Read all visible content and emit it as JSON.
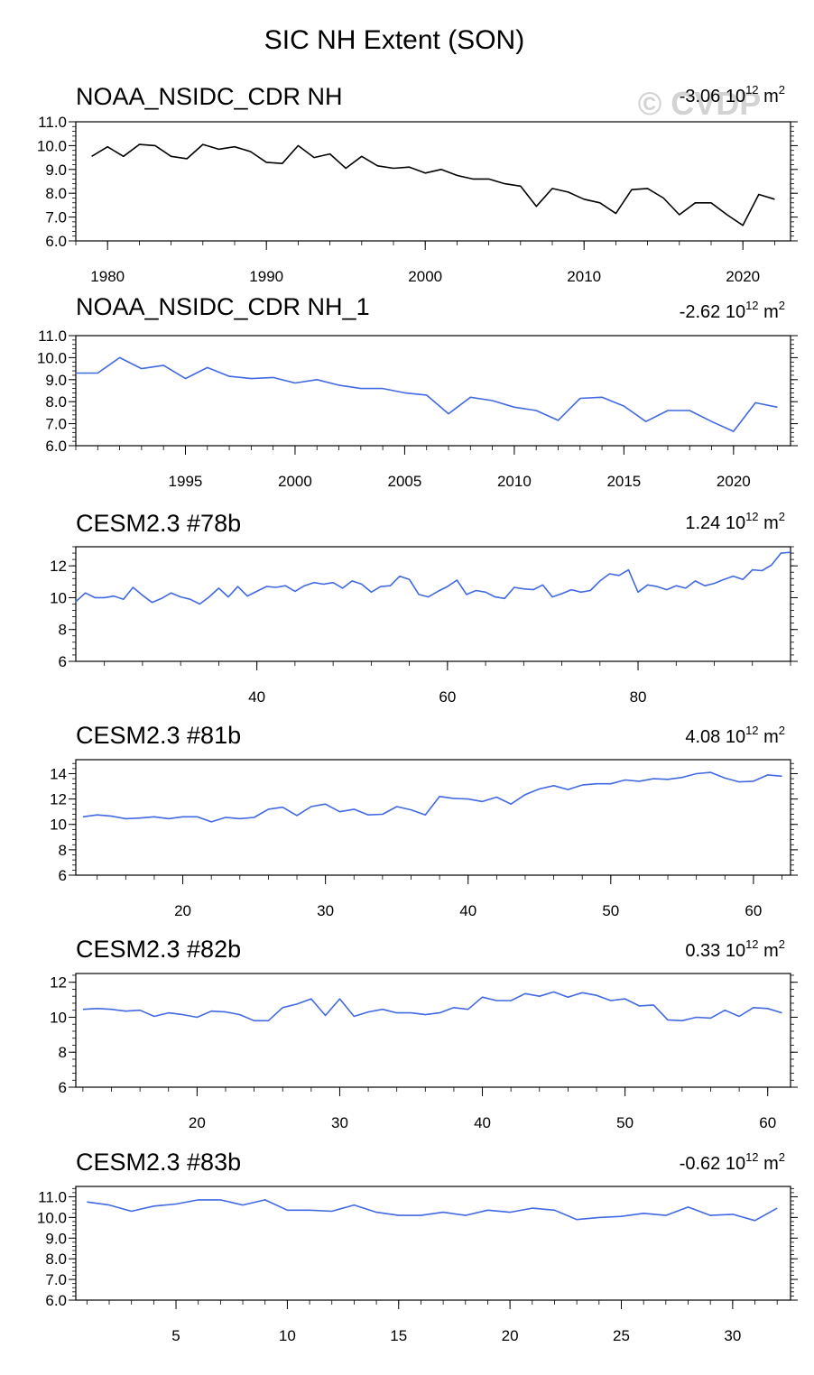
{
  "figure": {
    "title": "SIC NH Extent (SON)",
    "watermark": "© CVDP",
    "unit_base": "10",
    "unit_exp": "12",
    "unit_m": "m",
    "unit_sup": "2"
  },
  "chart_data": [
    {
      "type": "line",
      "title": "NOAA_NSIDC_CDR NH",
      "trend": "-3.06",
      "color": "#000000",
      "xlim": [
        1978,
        2023
      ],
      "ylim": [
        6,
        11
      ],
      "yticks": [
        6,
        7,
        8,
        9,
        10,
        11
      ],
      "yticklabels": [
        "6.0",
        "7.0",
        "8.0",
        "9.0",
        "10.0",
        "11.0"
      ],
      "xticks": [
        1980,
        1990,
        2000,
        2010,
        2020
      ],
      "xticklabels": [
        "1980",
        "1990",
        "2000",
        "2010",
        "2020"
      ],
      "x": [
        1979,
        1980,
        1981,
        1982,
        1983,
        1984,
        1985,
        1986,
        1987,
        1988,
        1989,
        1990,
        1991,
        1992,
        1993,
        1994,
        1995,
        1996,
        1997,
        1998,
        1999,
        2000,
        2001,
        2002,
        2003,
        2004,
        2005,
        2006,
        2007,
        2008,
        2009,
        2010,
        2011,
        2012,
        2013,
        2014,
        2015,
        2016,
        2017,
        2018,
        2019,
        2020,
        2021,
        2022
      ],
      "y": [
        9.55,
        9.95,
        9.55,
        10.05,
        10.0,
        9.55,
        9.45,
        10.05,
        9.85,
        9.95,
        9.75,
        9.3,
        9.25,
        10.0,
        9.5,
        9.65,
        9.05,
        9.55,
        9.15,
        9.05,
        9.1,
        8.85,
        9.0,
        8.75,
        8.6,
        8.6,
        8.4,
        8.3,
        7.45,
        8.2,
        8.05,
        7.75,
        7.6,
        7.15,
        8.15,
        8.2,
        7.8,
        7.1,
        7.6,
        7.6,
        7.1,
        6.65,
        7.95,
        7.75
      ]
    },
    {
      "type": "line",
      "title": "NOAA_NSIDC_CDR NH_1",
      "trend": "-2.62",
      "color": "#4169e1",
      "xlim": [
        1990,
        2022.6
      ],
      "ylim": [
        6,
        11
      ],
      "yticks": [
        6,
        7,
        8,
        9,
        10,
        11
      ],
      "yticklabels": [
        "6.0",
        "7.0",
        "8.0",
        "9.0",
        "10.0",
        "11.0"
      ],
      "xticks": [
        1995,
        2000,
        2005,
        2010,
        2015,
        2020
      ],
      "xticklabels": [
        "1995",
        "2000",
        "2005",
        "2010",
        "2015",
        "2020"
      ],
      "x": [
        1990,
        1991,
        1992,
        1993,
        1994,
        1995,
        1996,
        1997,
        1998,
        1999,
        2000,
        2001,
        2002,
        2003,
        2004,
        2005,
        2006,
        2007,
        2008,
        2009,
        2010,
        2011,
        2012,
        2013,
        2014,
        2015,
        2016,
        2017,
        2018,
        2019,
        2020,
        2021,
        2022
      ],
      "y": [
        9.3,
        9.3,
        10.0,
        9.5,
        9.65,
        9.05,
        9.55,
        9.15,
        9.05,
        9.1,
        8.85,
        9.0,
        8.75,
        8.6,
        8.6,
        8.4,
        8.3,
        7.45,
        8.2,
        8.05,
        7.75,
        7.6,
        7.15,
        8.15,
        8.2,
        7.8,
        7.1,
        7.6,
        7.6,
        7.1,
        6.65,
        7.95,
        7.75
      ]
    },
    {
      "type": "line",
      "title": "CESM2.3 #78b",
      "trend": "1.24",
      "color": "#4169e1",
      "xlim": [
        21,
        96
      ],
      "ylim": [
        6,
        13.2
      ],
      "yticks": [
        6,
        8,
        10,
        12
      ],
      "yticklabels": [
        "6",
        "8",
        "10",
        "12"
      ],
      "xticks": [
        40,
        60,
        80
      ],
      "xticklabels": [
        "40",
        "60",
        "80"
      ],
      "x": [
        21,
        22,
        23,
        24,
        25,
        26,
        27,
        28,
        29,
        30,
        31,
        32,
        33,
        34,
        35,
        36,
        37,
        38,
        39,
        40,
        41,
        42,
        43,
        44,
        45,
        46,
        47,
        48,
        49,
        50,
        51,
        52,
        53,
        54,
        55,
        56,
        57,
        58,
        59,
        60,
        61,
        62,
        63,
        64,
        65,
        66,
        67,
        68,
        69,
        70,
        71,
        72,
        73,
        74,
        75,
        76,
        77,
        78,
        79,
        80,
        81,
        82,
        83,
        84,
        85,
        86,
        87,
        88,
        89,
        90,
        91,
        92,
        93,
        94,
        95,
        96
      ],
      "y": [
        9.75,
        10.3,
        10.0,
        10.0,
        10.1,
        9.9,
        10.65,
        10.15,
        9.7,
        9.95,
        10.3,
        10.05,
        9.9,
        9.6,
        10.05,
        10.6,
        10.05,
        10.7,
        10.1,
        10.4,
        10.7,
        10.65,
        10.75,
        10.4,
        10.75,
        10.95,
        10.85,
        10.95,
        10.6,
        11.05,
        10.85,
        10.35,
        10.7,
        10.75,
        11.35,
        11.15,
        10.2,
        10.05,
        10.4,
        10.7,
        11.1,
        10.2,
        10.45,
        10.35,
        10.05,
        9.95,
        10.65,
        10.55,
        10.5,
        10.8,
        10.05,
        10.25,
        10.5,
        10.35,
        10.45,
        11.05,
        11.5,
        11.4,
        11.75,
        10.35,
        10.8,
        10.7,
        10.5,
        10.75,
        10.6,
        11.05,
        10.75,
        10.9,
        11.15,
        11.35,
        11.15,
        11.75,
        11.7,
        12.05,
        12.8,
        12.85
      ]
    },
    {
      "type": "line",
      "title": "CESM2.3 #81b",
      "trend": "4.08",
      "color": "#4169e1",
      "xlim": [
        12.5,
        62.6
      ],
      "ylim": [
        6,
        15.1
      ],
      "yticks": [
        6,
        8,
        10,
        12,
        14
      ],
      "yticklabels": [
        "6",
        "8",
        "10",
        "12",
        "14"
      ],
      "xticks": [
        20,
        30,
        40,
        50,
        60
      ],
      "xticklabels": [
        "20",
        "30",
        "40",
        "50",
        "60"
      ],
      "x": [
        13,
        14,
        15,
        16,
        17,
        18,
        19,
        20,
        21,
        22,
        23,
        24,
        25,
        26,
        27,
        28,
        29,
        30,
        31,
        32,
        33,
        34,
        35,
        36,
        37,
        38,
        39,
        40,
        41,
        42,
        43,
        44,
        45,
        46,
        47,
        48,
        49,
        50,
        51,
        52,
        53,
        54,
        55,
        56,
        57,
        58,
        59,
        60,
        61,
        62
      ],
      "y": [
        10.6,
        10.75,
        10.65,
        10.45,
        10.5,
        10.6,
        10.45,
        10.6,
        10.6,
        10.2,
        10.55,
        10.45,
        10.55,
        11.2,
        11.35,
        10.7,
        11.4,
        11.6,
        11.0,
        11.2,
        10.75,
        10.8,
        11.4,
        11.15,
        10.75,
        12.2,
        12.05,
        12.0,
        11.8,
        12.15,
        11.6,
        12.35,
        12.8,
        13.05,
        12.75,
        13.1,
        13.2,
        13.2,
        13.5,
        13.4,
        13.6,
        13.55,
        13.7,
        14.0,
        14.1,
        13.65,
        13.35,
        13.4,
        13.9,
        13.8
      ]
    },
    {
      "type": "line",
      "title": "CESM2.3 #82b",
      "trend": "0.33",
      "color": "#4169e1",
      "xlim": [
        11.5,
        61.6
      ],
      "ylim": [
        6,
        12.5
      ],
      "yticks": [
        6,
        8,
        10,
        12
      ],
      "yticklabels": [
        "6",
        "8",
        "10",
        "12"
      ],
      "xticks": [
        20,
        30,
        40,
        50,
        60
      ],
      "xticklabels": [
        "20",
        "30",
        "40",
        "50",
        "60"
      ],
      "x": [
        12,
        13,
        14,
        15,
        16,
        17,
        18,
        19,
        20,
        21,
        22,
        23,
        24,
        25,
        26,
        27,
        28,
        29,
        30,
        31,
        32,
        33,
        34,
        35,
        36,
        37,
        38,
        39,
        40,
        41,
        42,
        43,
        44,
        45,
        46,
        47,
        48,
        49,
        50,
        51,
        52,
        53,
        54,
        55,
        56,
        57,
        58,
        59,
        60,
        61
      ],
      "y": [
        10.45,
        10.5,
        10.45,
        10.35,
        10.4,
        10.05,
        10.25,
        10.15,
        10.0,
        10.35,
        10.3,
        10.15,
        9.8,
        9.8,
        10.55,
        10.75,
        11.05,
        10.1,
        11.05,
        10.05,
        10.3,
        10.45,
        10.25,
        10.25,
        10.15,
        10.25,
        10.55,
        10.45,
        11.15,
        10.95,
        10.95,
        11.35,
        11.2,
        11.45,
        11.15,
        11.4,
        11.25,
        10.95,
        11.05,
        10.65,
        10.7,
        9.85,
        9.8,
        10.0,
        9.95,
        10.4,
        10.05,
        10.55,
        10.5,
        10.25
      ]
    },
    {
      "type": "line",
      "title": "CESM2.3 #83b",
      "trend": "-0.62",
      "color": "#4169e1",
      "xlim": [
        0.5,
        32.6
      ],
      "ylim": [
        6,
        11.5
      ],
      "yticks": [
        6,
        7,
        8,
        9,
        10,
        11
      ],
      "yticklabels": [
        "6.0",
        "7.0",
        "8.0",
        "9.0",
        "10.0",
        "11.0"
      ],
      "xticks": [
        5,
        10,
        15,
        20,
        25,
        30
      ],
      "xticklabels": [
        "5",
        "10",
        "15",
        "20",
        "25",
        "30"
      ],
      "x": [
        1,
        2,
        3,
        4,
        5,
        6,
        7,
        8,
        9,
        10,
        11,
        12,
        13,
        14,
        15,
        16,
        17,
        18,
        19,
        20,
        21,
        22,
        23,
        24,
        25,
        26,
        27,
        28,
        29,
        30,
        31,
        32
      ],
      "y": [
        10.75,
        10.6,
        10.3,
        10.55,
        10.65,
        10.85,
        10.85,
        10.6,
        10.85,
        10.35,
        10.35,
        10.3,
        10.6,
        10.25,
        10.1,
        10.1,
        10.25,
        10.1,
        10.35,
        10.25,
        10.45,
        10.35,
        9.9,
        10.0,
        10.05,
        10.2,
        10.1,
        10.5,
        10.1,
        10.15,
        9.85,
        10.45
      ]
    }
  ]
}
